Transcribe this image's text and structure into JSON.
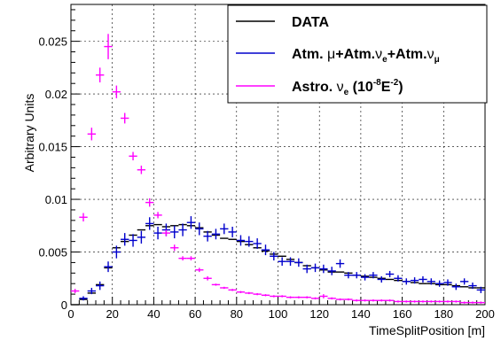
{
  "chart_data": {
    "type": "scatter",
    "xlabel": "TimeSplitPosition [m]",
    "ylabel": "Arbitrary Units",
    "xlim": [
      0,
      200
    ],
    "ylim": [
      0,
      0.0285
    ],
    "x_ticks": [
      "0",
      "20",
      "40",
      "60",
      "80",
      "100",
      "120",
      "140",
      "160",
      "180",
      "200"
    ],
    "y_ticks": [
      "0",
      "0.005",
      "0.01",
      "0.015",
      "0.02",
      "0.025"
    ],
    "grid": true,
    "legend_position": "top-right",
    "bin_width": 4,
    "series": [
      {
        "name": "DATA",
        "style": "histogram-bars",
        "color": "#000000",
        "x": [
          2,
          6,
          10,
          14,
          18,
          22,
          26,
          30,
          34,
          38,
          42,
          46,
          50,
          54,
          58,
          62,
          66,
          70,
          74,
          78,
          82,
          86,
          90,
          94,
          98,
          102,
          106,
          110,
          114,
          118,
          122,
          126,
          130,
          134,
          138,
          142,
          146,
          150,
          154,
          158,
          162,
          166,
          170,
          174,
          178,
          182,
          186,
          190,
          194,
          198
        ],
        "values": [
          0,
          0.0005,
          0.0011,
          0.0019,
          0.0035,
          0.0054,
          0.006,
          0.0066,
          0.0071,
          0.0075,
          0.0076,
          0.0074,
          0.0075,
          0.0076,
          0.0075,
          0.0073,
          0.0069,
          0.0066,
          0.0063,
          0.0062,
          0.006,
          0.0057,
          0.0054,
          0.0051,
          0.0048,
          0.0046,
          0.0043,
          0.004,
          0.0037,
          0.0035,
          0.0033,
          0.0031,
          0.0031,
          0.003,
          0.0028,
          0.0027,
          0.0026,
          0.0025,
          0.0024,
          0.0023,
          0.0022,
          0.0021,
          0.002,
          0.002,
          0.0019,
          0.0019,
          0.0018,
          0.0017,
          0.0016,
          0.0016
        ]
      },
      {
        "name": "Atm. μ+Atm.νe+Atm.νμ",
        "style": "crosses",
        "color": "#0000cc",
        "x": [
          2,
          6,
          10,
          14,
          18,
          22,
          26,
          30,
          34,
          38,
          42,
          46,
          50,
          54,
          58,
          62,
          66,
          70,
          74,
          78,
          82,
          86,
          90,
          94,
          98,
          102,
          106,
          110,
          114,
          118,
          122,
          126,
          130,
          134,
          138,
          142,
          146,
          150,
          154,
          158,
          162,
          166,
          170,
          174,
          178,
          182,
          186,
          190,
          194,
          198
        ],
        "values": [
          0,
          0.0006,
          0.0013,
          0.0018,
          0.0036,
          0.005,
          0.0062,
          0.0061,
          0.0064,
          0.0077,
          0.0068,
          0.0071,
          0.0069,
          0.0071,
          0.0078,
          0.0072,
          0.0065,
          0.0067,
          0.0072,
          0.0069,
          0.0061,
          0.006,
          0.0058,
          0.0052,
          0.0046,
          0.0041,
          0.0041,
          0.004,
          0.0034,
          0.0035,
          0.0034,
          0.0032,
          0.0039,
          0.0028,
          0.0028,
          0.0026,
          0.0028,
          0.0024,
          0.0029,
          0.0025,
          0.0022,
          0.0023,
          0.0024,
          0.0022,
          0.002,
          0.0021,
          0.0017,
          0.0022,
          0.0018,
          0.0014
        ],
        "errors": [
          0,
          0.0002,
          0.0003,
          0.0004,
          0.0005,
          0.0006,
          0.0006,
          0.0006,
          0.0006,
          0.0006,
          0.0006,
          0.0006,
          0.0006,
          0.0006,
          0.0006,
          0.0006,
          0.0005,
          0.0005,
          0.0005,
          0.0005,
          0.0005,
          0.0005,
          0.0005,
          0.0005,
          0.0004,
          0.0004,
          0.0004,
          0.0004,
          0.0004,
          0.0004,
          0.0004,
          0.0004,
          0.0004,
          0.0003,
          0.0003,
          0.0003,
          0.0003,
          0.0003,
          0.0003,
          0.0003,
          0.0003,
          0.0003,
          0.0003,
          0.0003,
          0.0003,
          0.0003,
          0.0003,
          0.0003,
          0.0003,
          0.0003
        ]
      },
      {
        "name": "Astro. νe (10⁻⁸E⁻²)",
        "style": "crosses",
        "color": "#ff00ff",
        "x": [
          2,
          6,
          10,
          14,
          18,
          22,
          26,
          30,
          34,
          38,
          42,
          46,
          50,
          54,
          58,
          62,
          66,
          70,
          74,
          78,
          82,
          86,
          90,
          94,
          98,
          102,
          106,
          110,
          114,
          118,
          122,
          126,
          130,
          134,
          138,
          142,
          146,
          150,
          154,
          158,
          162,
          166,
          170,
          174,
          178,
          182,
          186,
          190,
          194,
          198
        ],
        "values": [
          0.0013,
          0.0083,
          0.0162,
          0.0218,
          0.0245,
          0.0202,
          0.0177,
          0.0141,
          0.0128,
          0.0097,
          0.0085,
          0.0068,
          0.0054,
          0.0044,
          0.0044,
          0.0033,
          0.0025,
          0.0019,
          0.0016,
          0.0014,
          0.0012,
          0.0011,
          0.001,
          0.0009,
          0.0008,
          0.0008,
          0.0007,
          0.0007,
          0.0007,
          0.0006,
          0.0008,
          0.0006,
          0.0005,
          0.0005,
          0.0004,
          0.0004,
          0.0004,
          0.0004,
          0.0004,
          0.0003,
          0.0003,
          0.0003,
          0.0003,
          0.0003,
          0.0003,
          0.0003,
          0.0003,
          0.0002,
          0.0002,
          0.0002
        ],
        "errors": [
          0.0002,
          0.0004,
          0.0006,
          0.0007,
          0.0012,
          0.0006,
          0.0005,
          0.0004,
          0.0004,
          0.0004,
          0.0003,
          0.0003,
          0.0003,
          0.0002,
          0.0002,
          0.0002,
          0.0002,
          0.0001,
          0.0001,
          0.0001,
          0.0001,
          0.0001,
          0.0001,
          0.0001,
          0.0001,
          0.0001,
          0.0001,
          0.0001,
          0.0001,
          0.0001,
          0.0002,
          0.0001,
          0.0001,
          0.0001,
          0.0001,
          0.0001,
          0.0001,
          0.0001,
          0.0001,
          0.0001,
          0.0001,
          0.0001,
          0.0001,
          0.0001,
          0.0001,
          0.0001,
          0.0001,
          0.0001,
          0.0001,
          0.0001
        ]
      }
    ],
    "legend": {
      "data": "DATA",
      "atm_prefix": "Atm. ",
      "atm_mu": "μ",
      "atm_plus1": "+Atm.",
      "atm_nu_e": "ν",
      "atm_sub_e": "e",
      "atm_plus2": "+Atm.",
      "atm_nu_mu": "ν",
      "atm_sub_mu": "μ",
      "astro_prefix": "Astro. ",
      "astro_nu": "ν",
      "astro_sub": "e",
      "astro_open": " (10",
      "astro_exp1": "-8",
      "astro_e": "E",
      "astro_exp2": "-2",
      "astro_close": ")"
    }
  }
}
